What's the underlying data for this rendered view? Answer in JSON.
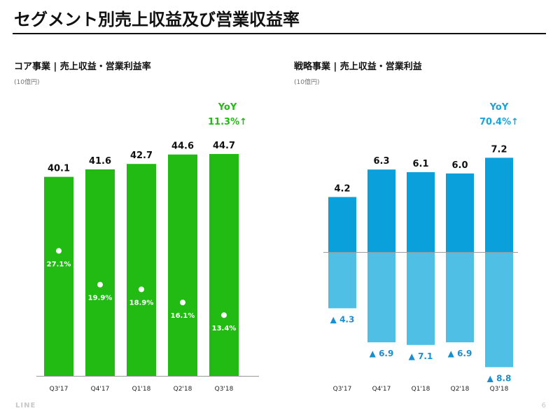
{
  "page": {
    "title": "セグメント別売上収益及び営業収益率",
    "footer_logo": "LINE",
    "page_number": "6"
  },
  "left_panel": {
    "title": "コア事業 | 売上収益・営業利益率",
    "unit": "(10億円)"
  },
  "right_panel": {
    "title": "戦略事業 | 売上収益・営業利益",
    "unit": "(10億円)"
  },
  "colors": {
    "core_bar": "#22bb14",
    "core_yoy": "#22bb14",
    "strategic_revenue": "#0aa0dc",
    "strategic_loss": "#4fbfe6",
    "strategic_yoy": "#1aa3dd",
    "loss_label": "#1a8fd0",
    "axis_line": "#9a9a9a"
  },
  "chart_data": [
    {
      "type": "bar",
      "name": "core-business",
      "categories": [
        "Q3'17",
        "Q4'17",
        "Q1'18",
        "Q2'18",
        "Q3'18"
      ],
      "series": [
        {
          "name": "売上収益",
          "values": [
            40.1,
            41.6,
            42.7,
            44.6,
            44.7
          ],
          "labels": [
            "40.1",
            "41.6",
            "42.7",
            "44.6",
            "44.7"
          ]
        },
        {
          "name": "営業利益率",
          "values": [
            27.1,
            19.9,
            18.9,
            16.1,
            13.4
          ],
          "labels": [
            "27.1%",
            "19.9%",
            "18.9%",
            "16.1%",
            "13.4%"
          ]
        }
      ],
      "ylim": [
        0,
        44.7
      ],
      "yoy_label": "YoY",
      "yoy_value": "11.3%↑"
    },
    {
      "type": "bar",
      "name": "strategic-business",
      "categories": [
        "Q3'17",
        "Q4'17",
        "Q1'18",
        "Q2'18",
        "Q3'18"
      ],
      "series": [
        {
          "name": "売上収益",
          "values": [
            4.2,
            6.3,
            6.1,
            6.0,
            7.2
          ],
          "labels": [
            "4.2",
            "6.3",
            "6.1",
            "6.0",
            "7.2"
          ]
        },
        {
          "name": "営業利益",
          "values": [
            -4.3,
            -6.9,
            -7.1,
            -6.9,
            -8.8
          ],
          "labels": [
            "▲ 4.3",
            "▲ 6.9",
            "▲ 7.1",
            "▲ 6.9",
            "▲ 8.8"
          ]
        }
      ],
      "ylim": [
        -8.8,
        7.2
      ],
      "yoy_label": "YoY",
      "yoy_value": "70.4%↑"
    }
  ]
}
